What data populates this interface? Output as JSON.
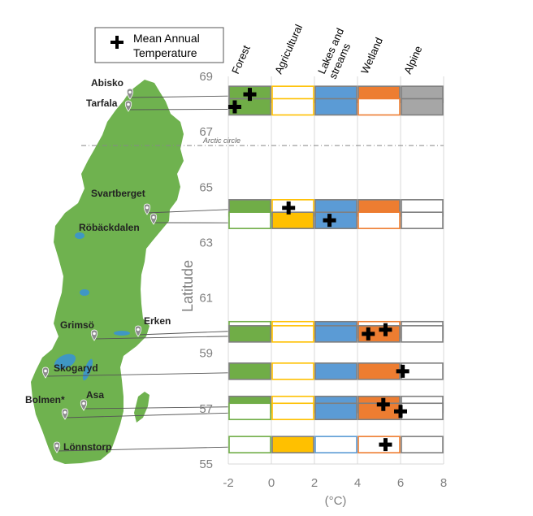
{
  "legend": {
    "label_line1": "Mean Annual",
    "label_line2": "Temperature",
    "marker": "plus-icon"
  },
  "columns": [
    {
      "label_lines": [
        "Forest"
      ]
    },
    {
      "label_lines": [
        "Agricultural"
      ]
    },
    {
      "label_lines": [
        "Lakes and",
        "streams"
      ]
    },
    {
      "label_lines": [
        "Wetland"
      ]
    },
    {
      "label_lines": [
        "Alpine"
      ]
    }
  ],
  "colors": {
    "forest": "#70ad47",
    "agricultural": "#ffc000",
    "lakes": "#5b9bd5",
    "wetland": "#ed7d31",
    "alpine": "#a6a6a6",
    "empty": "#ffffff",
    "map": "#6fb24f",
    "water": "#3f97c4",
    "pin": "#8c8c8c"
  },
  "arctic_circle_label": "Arctic circle",
  "arctic_circle_latitude": 66.5,
  "chart_data": {
    "type": "table",
    "y_axis": {
      "label": "Latitude",
      "ticks": [
        55,
        57,
        59,
        61,
        63,
        65,
        67,
        69
      ],
      "range": [
        55,
        69
      ]
    },
    "x_axis": {
      "label": "(°C)",
      "ticks": [
        -2,
        0,
        2,
        4,
        6,
        8
      ],
      "range": [
        -2,
        8
      ]
    },
    "categories": [
      "Forest",
      "Agricultural",
      "Lakes and streams",
      "Wetland",
      "Alpine"
    ],
    "sites": [
      {
        "name": "Abisko",
        "latitude": 68.35,
        "temperature": -1.0,
        "cover": [
          "forest",
          "none",
          "lakes",
          "wetland",
          "alpine"
        ],
        "label_side": "left"
      },
      {
        "name": "Tarfala",
        "latitude": 67.9,
        "temperature": -1.7,
        "cover": [
          "forest",
          "none",
          "lakes",
          "none",
          "alpine"
        ],
        "label_side": "left"
      },
      {
        "name": "Svartberget",
        "latitude": 64.25,
        "temperature": 0.8,
        "cover": [
          "forest",
          "none",
          "lakes",
          "wetland",
          "none"
        ],
        "label_side": "left"
      },
      {
        "name": "Röbäckdalen",
        "latitude": 63.8,
        "temperature": 2.7,
        "cover": [
          "none",
          "agricultural",
          "lakes",
          "none",
          "none"
        ],
        "label_side": "left"
      },
      {
        "name": "Erken",
        "latitude": 59.85,
        "temperature": 5.3,
        "cover": [
          "none",
          "none",
          "lakes",
          "none",
          "none"
        ],
        "label_side": "right"
      },
      {
        "name": "Grimsö",
        "latitude": 59.7,
        "temperature": 4.5,
        "cover": [
          "forest",
          "none",
          "lakes",
          "wetland",
          "none"
        ],
        "label_side": "left"
      },
      {
        "name": "Skogaryd",
        "latitude": 58.35,
        "temperature": 6.1,
        "cover": [
          "forest",
          "none",
          "lakes",
          "wetland",
          "none"
        ],
        "label_side": "right"
      },
      {
        "name": "Asa",
        "latitude": 57.15,
        "temperature": 5.2,
        "cover": [
          "forest",
          "none",
          "lakes",
          "wetland",
          "none"
        ],
        "label_side": "right"
      },
      {
        "name": "Bolmen*",
        "latitude": 56.9,
        "temperature": 6.0,
        "cover": [
          "none",
          "none",
          "lakes",
          "wetland",
          "none"
        ],
        "label_side": "left"
      },
      {
        "name": "Lönnstorp",
        "latitude": 55.7,
        "temperature": 5.3,
        "cover": [
          "none",
          "agricultural",
          "none",
          "none",
          "none"
        ],
        "label_side": "right"
      }
    ]
  }
}
